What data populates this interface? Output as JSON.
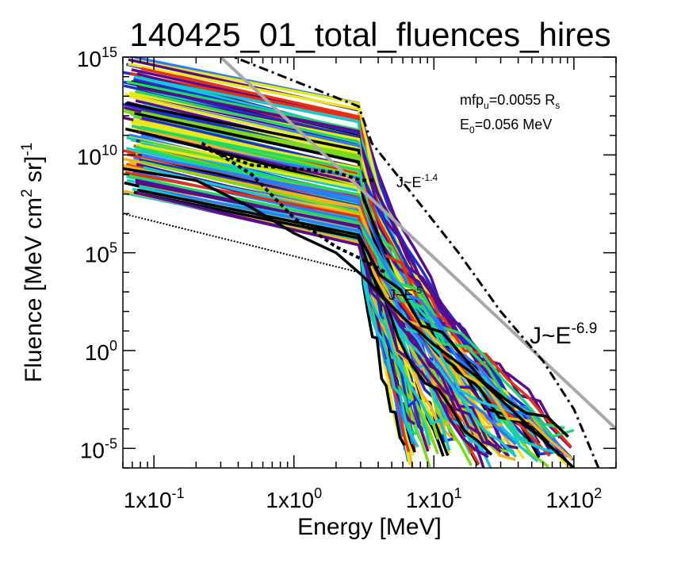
{
  "chart_data": {
    "type": "line",
    "title": "140425_01_total_fluences_hires",
    "xlabel": "Energy [MeV]",
    "ylabel": {
      "prefix": "Fluence [MeV cm",
      "sup1": "2",
      "mid": " sr]",
      "sup2": "-1"
    },
    "xscale": "log",
    "yscale": "log",
    "xlim": [
      0.06,
      200
    ],
    "ylim": [
      1e-06,
      1000000000000000.0
    ],
    "grid": false,
    "x_ticks": [
      {
        "value": 0.1,
        "label": "1x10",
        "exp": "-1"
      },
      {
        "value": 1,
        "label": "1x10",
        "exp": "0"
      },
      {
        "value": 10,
        "label": "1x10",
        "exp": "1"
      },
      {
        "value": 100,
        "label": "1x10",
        "exp": "2"
      }
    ],
    "y_ticks": [
      {
        "value": 1000000000000000.0,
        "label": "10",
        "exp": "15"
      },
      {
        "value": 10000000000.0,
        "label": "10",
        "exp": "10"
      },
      {
        "value": 100000.0,
        "label": "10",
        "exp": "5"
      },
      {
        "value": 1,
        "label": "10",
        "exp": "0"
      },
      {
        "value": 1e-05,
        "label": "10",
        "exp": "-5"
      }
    ],
    "annotations": {
      "mfp": {
        "text": "mfp",
        "sub": "u",
        "rest": "=0.0055 R",
        "sub2": "s"
      },
      "e0": {
        "text": "E",
        "sub": "0",
        "rest": "=0.056 MeV"
      },
      "fit1": {
        "text": "J~E",
        "exp": "-1.4"
      },
      "fit2": {
        "text": "J~E",
        "exp": "-5"
      },
      "fit3": {
        "text": "J~E",
        "exp": "-6.9"
      }
    },
    "reference_lines": [
      {
        "name": "power-law-6.9",
        "style": "gray",
        "x": [
          0.3,
          200
        ],
        "y": [
          1000000000000000.0,
          0.0001
        ]
      },
      {
        "name": "upper-envelope",
        "style": "dashdot",
        "x": [
          0.06,
          0.35,
          2.9,
          3.6,
          7,
          15,
          30,
          60,
          100,
          150
        ],
        "y": [
          3000000000000000.0,
          1200000000000000.0,
          3000000000000.0,
          40000000000.0,
          100000000.0,
          100000.0,
          100.0,
          0.3,
          0.001,
          1e-06
        ]
      },
      {
        "name": "lower-envelope",
        "style": "dotted",
        "x": [
          0.06,
          2.9
        ],
        "y": [
          10000000.0,
          10000.0
        ]
      },
      {
        "name": "fit-1.4",
        "style": "dotted-thick",
        "x": [
          0.2,
          0.5,
          1,
          2,
          3,
          3.8
        ],
        "y": [
          30000000000.0,
          3000000000.0,
          2000000000.0,
          1300000000.0,
          500000000.0,
          500000000.0
        ]
      },
      {
        "name": "fit-5",
        "style": "dotted-thick",
        "x": [
          0.22,
          0.5,
          1,
          2,
          3,
          4.5
        ],
        "y": [
          40000000000.0,
          1000000000.0,
          6000000.0,
          200000.0,
          50000.0,
          10000.0
        ]
      },
      {
        "name": "mean-spectrum",
        "style": "black-solid",
        "x": [
          0.06,
          0.2,
          0.5,
          1,
          2,
          3,
          4,
          6,
          10,
          20,
          50,
          100
        ],
        "y": [
          2000000000.0,
          500000000.0,
          20000000.0,
          1000000.0,
          100000.0,
          8000.0,
          1000.0,
          50,
          2,
          0.05,
          0.0001,
          1e-06
        ]
      }
    ],
    "colors": [
      "#5a0a8c",
      "#1b2fd9",
      "#2a7bff",
      "#12c8d4",
      "#20d86a",
      "#7cdc14",
      "#e8e81a",
      "#f2b418",
      "#e83010",
      "#000000"
    ],
    "series_summary": {
      "count": 120,
      "upper_x_range": [
        0.06,
        2.9
      ],
      "upper_y_range": [
        10000000.0,
        500000000000000.0
      ],
      "lower_x_range": [
        2.9,
        100
      ],
      "lower_y_range": [
        1e-06,
        500000000.0
      ]
    }
  }
}
